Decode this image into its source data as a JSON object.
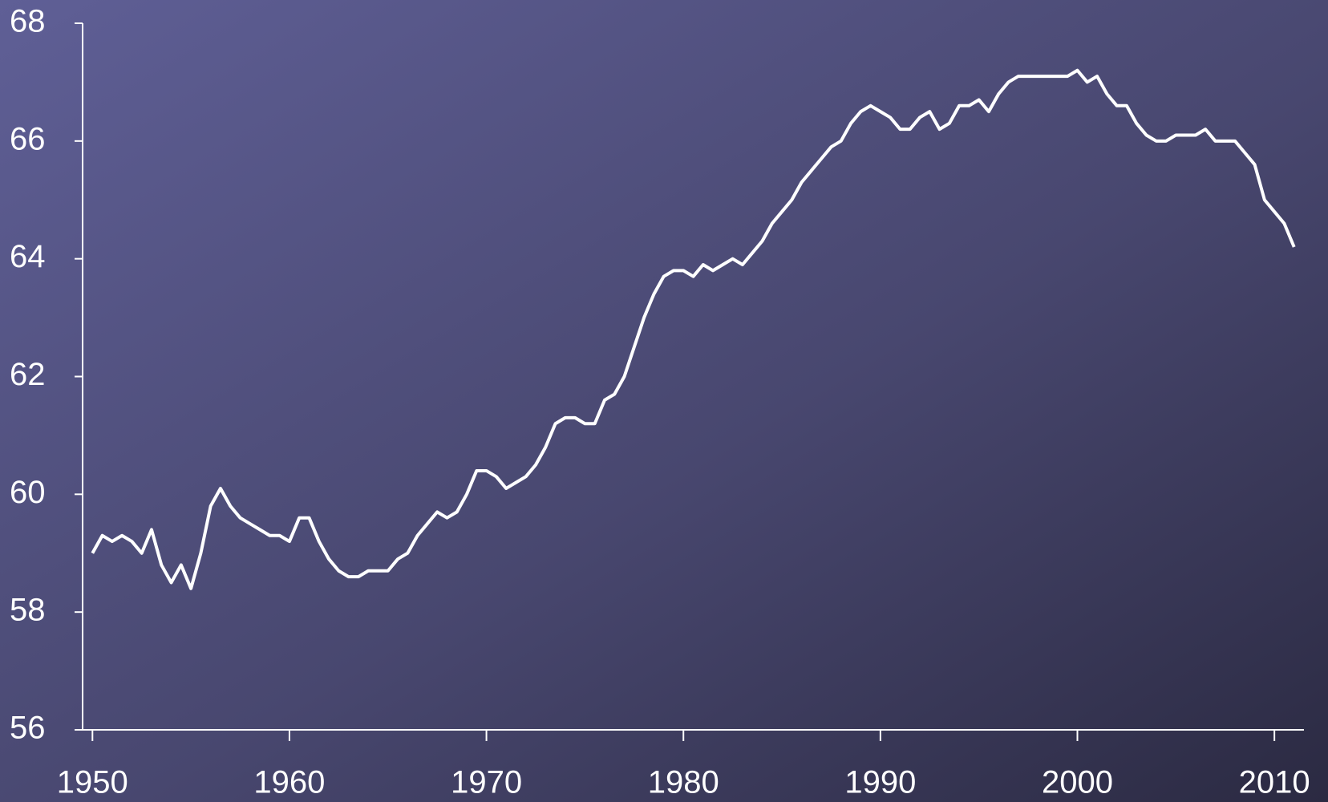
{
  "chart_data": {
    "type": "line",
    "x": [
      1950,
      1950.5,
      1951,
      1951.5,
      1952,
      1952.5,
      1953,
      1953.5,
      1954,
      1954.5,
      1955,
      1955.5,
      1956,
      1956.5,
      1957,
      1957.5,
      1958,
      1958.5,
      1959,
      1959.5,
      1960,
      1960.5,
      1961,
      1961.5,
      1962,
      1962.5,
      1963,
      1963.5,
      1964,
      1964.5,
      1965,
      1965.5,
      1966,
      1966.5,
      1967,
      1967.5,
      1968,
      1968.5,
      1969,
      1969.5,
      1970,
      1970.5,
      1971,
      1971.5,
      1972,
      1972.5,
      1973,
      1973.5,
      1974,
      1974.5,
      1975,
      1975.5,
      1976,
      1976.5,
      1977,
      1977.5,
      1978,
      1978.5,
      1979,
      1979.5,
      1980,
      1980.5,
      1981,
      1981.5,
      1982,
      1982.5,
      1983,
      1983.5,
      1984,
      1984.5,
      1985,
      1985.5,
      1986,
      1986.5,
      1987,
      1987.5,
      1988,
      1988.5,
      1989,
      1989.5,
      1990,
      1990.5,
      1991,
      1991.5,
      1992,
      1992.5,
      1993,
      1993.5,
      1994,
      1994.5,
      1995,
      1995.5,
      1996,
      1996.5,
      1997,
      1997.5,
      1998,
      1998.5,
      1999,
      1999.5,
      2000,
      2000.5,
      2001,
      2001.5,
      2002,
      2002.5,
      2003,
      2003.5,
      2004,
      2004.5,
      2005,
      2005.5,
      2006,
      2006.5,
      2007,
      2007.5,
      2008,
      2008.5,
      2009,
      2009.5,
      2010,
      2010.5,
      2011
    ],
    "series": [
      {
        "color": "#ffffff",
        "values": [
          59.0,
          59.3,
          59.2,
          59.3,
          59.2,
          59.0,
          59.4,
          58.8,
          58.5,
          58.8,
          58.4,
          59.0,
          59.8,
          60.1,
          59.8,
          59.6,
          59.5,
          59.4,
          59.3,
          59.3,
          59.2,
          59.6,
          59.6,
          59.2,
          58.9,
          58.7,
          58.6,
          58.6,
          58.7,
          58.7,
          58.7,
          58.9,
          59.0,
          59.3,
          59.5,
          59.7,
          59.6,
          59.7,
          60.0,
          60.4,
          60.4,
          60.3,
          60.1,
          60.2,
          60.3,
          60.5,
          60.8,
          61.2,
          61.3,
          61.3,
          61.2,
          61.2,
          61.6,
          61.7,
          62.0,
          62.5,
          63.0,
          63.4,
          63.7,
          63.8,
          63.8,
          63.7,
          63.9,
          63.8,
          63.9,
          64.0,
          63.9,
          64.1,
          64.3,
          64.6,
          64.8,
          65.0,
          65.3,
          65.5,
          65.7,
          65.9,
          66.0,
          66.3,
          66.5,
          66.6,
          66.5,
          66.4,
          66.2,
          66.2,
          66.4,
          66.5,
          66.2,
          66.3,
          66.6,
          66.6,
          66.7,
          66.5,
          66.8,
          67.0,
          67.1,
          67.1,
          67.1,
          67.1,
          67.1,
          67.1,
          67.2,
          67.0,
          67.1,
          66.8,
          66.6,
          66.6,
          66.3,
          66.1,
          66.0,
          66.0,
          66.1,
          66.1,
          66.1,
          66.2,
          66.0,
          66.0,
          66.0,
          65.8,
          65.6,
          65.0,
          64.8,
          64.6,
          64.2
        ]
      }
    ],
    "xlim": [
      1949.5,
      2011.5
    ],
    "xticks": [
      1950,
      1960,
      1970,
      1980,
      1990,
      2000,
      2010
    ],
    "ylim": [
      56,
      68
    ],
    "yticks": [
      56,
      58,
      60,
      62,
      64,
      66,
      68
    ]
  }
}
